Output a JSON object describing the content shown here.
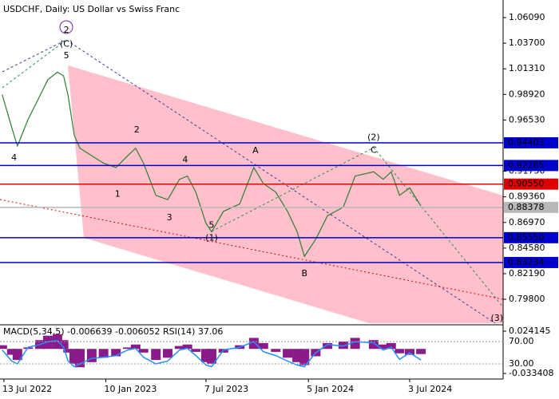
{
  "chart_data": {
    "type": "line",
    "title": "USDCHF, Daily:  US Dollar vs Swiss Franc",
    "x": [
      "2022-07-10",
      "2022-07-27",
      "2022-08-06",
      "2022-08-25",
      "2022-09-15",
      "2022-09-29",
      "2022-10-16",
      "2022-10-27",
      "2022-11-04",
      "2022-11-15",
      "2022-11-25",
      "2022-12-16",
      "2023-01-06",
      "2023-01-28",
      "2023-02-18",
      "2023-03-04",
      "2023-03-18",
      "2023-04-09",
      "2023-04-30",
      "2023-05-21",
      "2023-06-04",
      "2023-06-19",
      "2023-07-07",
      "2023-07-17",
      "2023-08-07",
      "2023-09-05",
      "2023-09-30",
      "2023-10-17",
      "2023-11-08",
      "2023-11-29",
      "2023-12-16",
      "2023-12-29",
      "2024-01-18",
      "2024-02-08",
      "2024-03-07",
      "2024-03-28",
      "2024-04-30",
      "2024-05-17",
      "2024-05-31",
      "2024-06-15",
      "2024-07-03",
      "2024-07-23"
    ],
    "series": [
      {
        "color": "#2e7d32",
        "values": [
          0.989,
          0.958,
          0.941,
          0.966,
          0.988,
          1.003,
          1.01,
          1.0065,
          0.988,
          0.951,
          0.939,
          0.932,
          0.925,
          0.921,
          0.932,
          0.939,
          0.925,
          0.895,
          0.891,
          0.91,
          0.913,
          0.898,
          0.869,
          0.861,
          0.88,
          0.887,
          0.921,
          0.906,
          0.898,
          0.88,
          0.861,
          0.838,
          0.854,
          0.876,
          0.884,
          0.913,
          0.917,
          0.91,
          0.917,
          0.895,
          0.902,
          0.885
        ]
      }
    ],
    "xlim": [
      "2022-07-06",
      "2024-12-16"
    ],
    "xticks": [
      {
        "value": "2022-07-13",
        "label": "13 Jul 2022"
      },
      {
        "value": "2023-01-10",
        "label": "10 Jan 2023"
      },
      {
        "value": "2023-07-07",
        "label": "7 Jul 2023"
      },
      {
        "value": "2024-01-05",
        "label": "5 Jan 2024"
      },
      {
        "value": "2024-07-03",
        "label": "3 Jul 2024"
      }
    ],
    "ylim": [
      0.7757,
      1.0773
    ],
    "yticks": [
      {
        "value": 1.0609,
        "label": "1.06090"
      },
      {
        "value": 1.037,
        "label": "1.03700"
      },
      {
        "value": 1.0131,
        "label": "1.01310"
      },
      {
        "value": 0.9892,
        "label": "0.98920"
      },
      {
        "value": 0.9653,
        "label": "0.96530"
      },
      {
        "value": 0.9175,
        "label": "0.91750"
      },
      {
        "value": 0.8936,
        "label": "0.89360"
      },
      {
        "value": 0.8697,
        "label": "0.86970"
      },
      {
        "value": 0.8458,
        "label": "0.84580"
      },
      {
        "value": 0.8219,
        "label": "0.82190"
      },
      {
        "value": 0.798,
        "label": "0.79800"
      }
    ],
    "levels": [
      {
        "value": 0.94403,
        "color": "#0000cd"
      },
      {
        "value": 0.92285,
        "color": "#0000cd"
      },
      {
        "value": 0.9055,
        "label": "0.90550",
        "color": "#e00000"
      },
      {
        "value": 0.8555,
        "label": "0.85550",
        "color": "#0000cd"
      },
      {
        "value": 0.83234,
        "color": "#0000cd"
      }
    ],
    "current": {
      "value": 0.88378,
      "color": "#b8b8b8"
    },
    "annotations": [
      {
        "text": "2",
        "x": "2022-11-01",
        "y": 1.049,
        "color": "#7b1fa2"
      },
      {
        "text": "(C)",
        "x": "2022-11-01",
        "y": 1.036,
        "color": "#2e8b57"
      },
      {
        "text": "5",
        "x": "2022-11-01",
        "y": 1.025,
        "color": "#a0522d"
      },
      {
        "text": "4",
        "x": "2022-07-31",
        "y": 0.93,
        "color": "#a0522d"
      },
      {
        "text": "2",
        "x": "2023-03-06",
        "y": 0.956,
        "color": "#a0522d"
      },
      {
        "text": "1",
        "x": "2023-01-31",
        "y": 0.896,
        "color": "#a0522d"
      },
      {
        "text": "4",
        "x": "2023-05-31",
        "y": 0.928,
        "color": "#a0522d"
      },
      {
        "text": "3",
        "x": "2023-05-03",
        "y": 0.874,
        "color": "#a0522d"
      },
      {
        "text": "5",
        "x": "2023-07-17",
        "y": 0.867,
        "color": "#a0522d"
      },
      {
        "text": "(1)",
        "x": "2023-07-17",
        "y": 0.855,
        "color": "#2e8b57"
      },
      {
        "text": "A",
        "x": "2023-10-03",
        "y": 0.9365,
        "color": "#a0522d"
      },
      {
        "text": "B",
        "x": "2023-12-29",
        "y": 0.822,
        "color": "#a0522d"
      },
      {
        "text": "(2)",
        "x": "2024-04-30",
        "y": 0.949,
        "color": "#2e8b57"
      },
      {
        "text": "C",
        "x": "2024-04-30",
        "y": 0.937,
        "color": "#a0522d"
      },
      {
        "text": "(3)",
        "x": "2024-12-05",
        "y": 0.78,
        "color": "#2e8b57"
      }
    ],
    "indicator": {
      "title": "MACD(5,34,5) -0.006639 -0.006052 RSI(14) 37.06",
      "macd": {
        "color": "#8b1a8b",
        "ylim": [
          -0.033408,
          0.024145
        ],
        "yticks": [
          0.024145,
          -0.033408
        ],
        "values": [
          0.005,
          -0.008,
          -0.015,
          0.002,
          0.012,
          0.018,
          0.02,
          0.012,
          -0.005,
          -0.02,
          -0.025,
          -0.018,
          -0.012,
          -0.01,
          0.002,
          0.006,
          -0.005,
          -0.015,
          -0.012,
          0.004,
          0.006,
          -0.004,
          -0.018,
          -0.02,
          -0.005,
          0.005,
          0.015,
          0.008,
          -0.004,
          -0.012,
          -0.018,
          -0.022,
          -0.01,
          0.008,
          0.01,
          0.015,
          0.012,
          0.006,
          0.008,
          -0.006,
          -0.008,
          -0.007
        ]
      },
      "rsi": {
        "color": "#1e90ff",
        "ylim": [
          7,
          99
        ],
        "yticks": [
          {
            "value": 70,
            "label": "70.00"
          },
          {
            "value": 30,
            "label": "30.00"
          }
        ],
        "values": [
          55,
          35,
          30,
          60,
          65,
          70,
          72,
          60,
          35,
          25,
          30,
          40,
          42,
          45,
          55,
          58,
          42,
          30,
          35,
          55,
          58,
          45,
          28,
          25,
          55,
          60,
          70,
          52,
          45,
          35,
          28,
          25,
          50,
          65,
          62,
          70,
          68,
          55,
          60,
          38,
          50,
          37.06
        ]
      }
    }
  }
}
